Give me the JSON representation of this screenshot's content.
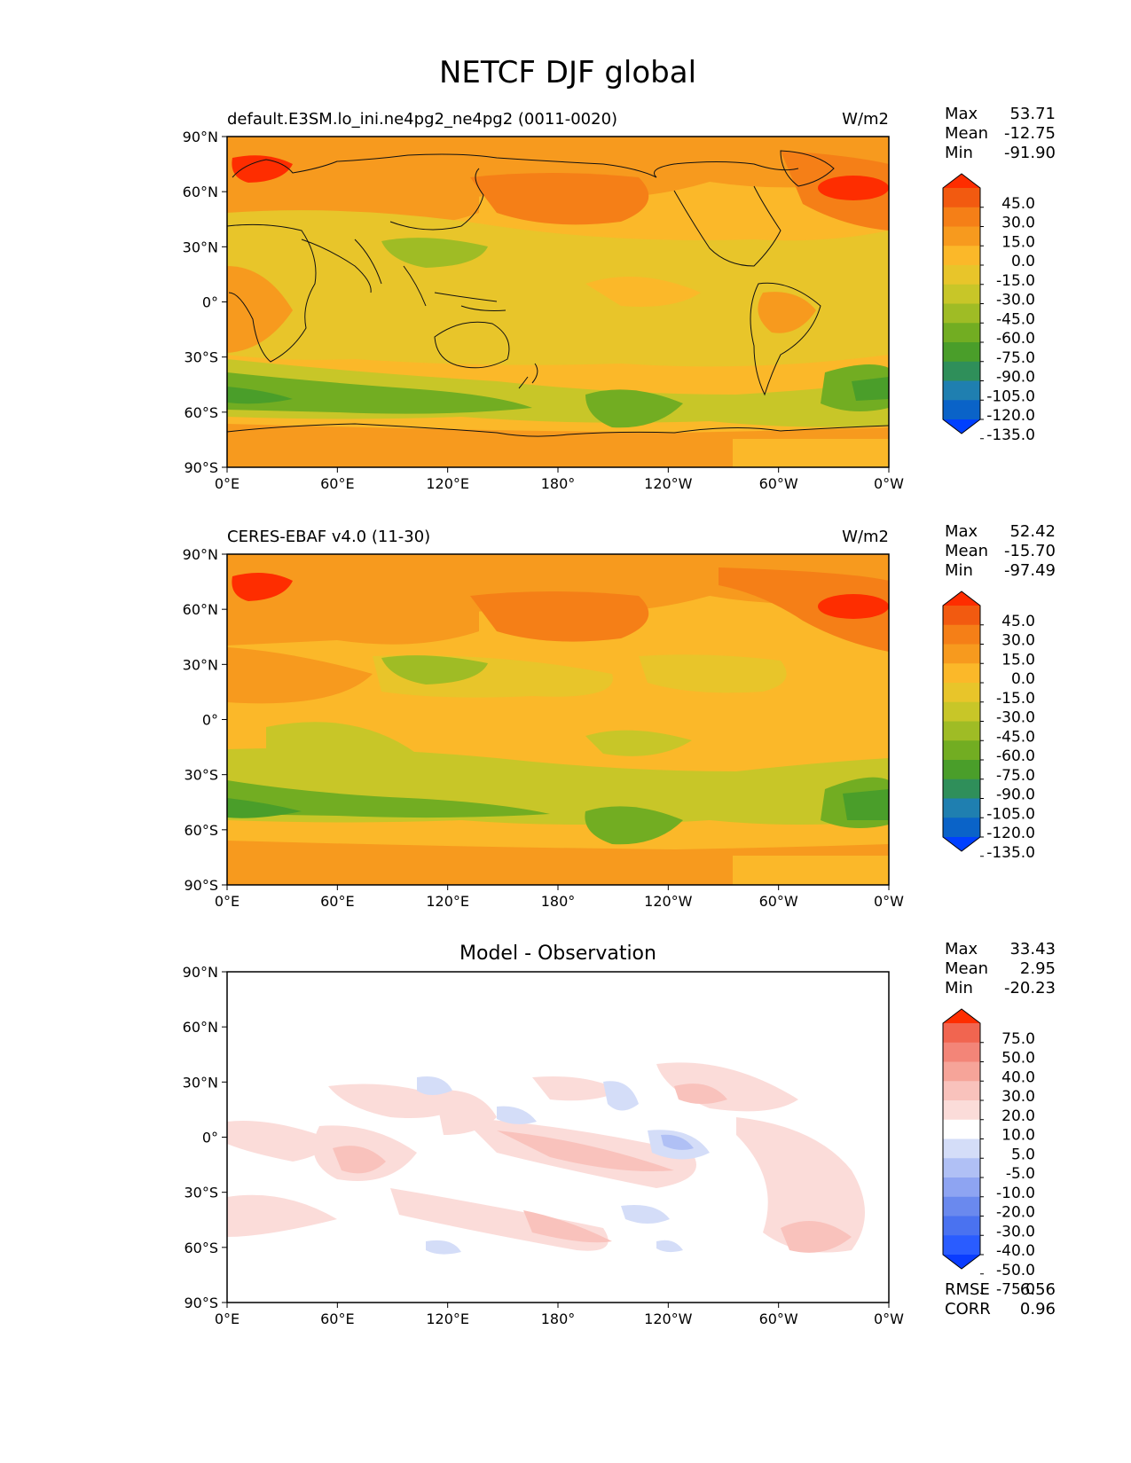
{
  "title": "NETCF DJF global",
  "colors": {
    "levels_abs": [
      "#0040ff",
      "#0a63c8",
      "#1f7fb0",
      "#2f8f5a",
      "#4a9e2a",
      "#72ad22",
      "#9fbc25",
      "#c8c628",
      "#e8c52a",
      "#fbb829",
      "#f79a1e",
      "#f57f17",
      "#f25a10",
      "#fe2d00"
    ],
    "levels_diff": [
      "#0a3cff",
      "#2a5cff",
      "#4a72f0",
      "#6a89ee",
      "#8ea4f2",
      "#b0c0f5",
      "#d4ddf8",
      "#ffffff",
      "#fbdcd9",
      "#f9c2bc",
      "#f6a499",
      "#f38578",
      "#f16550",
      "#fe2d00"
    ],
    "coast": "#111111"
  },
  "panels": [
    {
      "label": "default.E3SM.lo_ini.ne4pg2_ne4pg2 (0011-0020)",
      "units": "W/m2",
      "center_title": "",
      "stats": {
        "max_label": "Max",
        "max": "53.71",
        "mean_label": "Mean",
        "mean": "-12.75",
        "min_label": "Min",
        "min": "-91.90"
      },
      "colorbar_ticks": [
        "45.0",
        "30.0",
        "15.0",
        "0.0",
        "-15.0",
        "-30.0",
        "-45.0",
        "-60.0",
        "-75.0",
        "-90.0",
        "-105.0",
        "-120.0",
        "-135.0"
      ]
    },
    {
      "label": "CERES-EBAF v4.0 (11-30)",
      "units": "W/m2",
      "center_title": "",
      "stats": {
        "max_label": "Max",
        "max": "52.42",
        "mean_label": "Mean",
        "mean": "-15.70",
        "min_label": "Min",
        "min": "-97.49"
      },
      "colorbar_ticks": [
        "45.0",
        "30.0",
        "15.0",
        "0.0",
        "-15.0",
        "-30.0",
        "-45.0",
        "-60.0",
        "-75.0",
        "-90.0",
        "-105.0",
        "-120.0",
        "-135.0"
      ]
    },
    {
      "label": "",
      "units": "",
      "center_title": "Model - Observation",
      "stats": {
        "max_label": "Max",
        "max": "33.43",
        "mean_label": "Mean",
        "mean": "2.95",
        "min_label": "Min",
        "min": "-20.23"
      },
      "colorbar_ticks": [
        "75.0",
        "50.0",
        "40.0",
        "30.0",
        "20.0",
        "10.0",
        "5.0",
        "-5.0",
        "-10.0",
        "-20.0",
        "-30.0",
        "-40.0",
        "-50.0",
        "-75.0"
      ],
      "rmse_label": "RMSE",
      "rmse": "6.56",
      "corr_label": "CORR",
      "corr": "0.96"
    }
  ],
  "lat_ticks": [
    "90°N",
    "60°N",
    "30°N",
    "0°",
    "30°S",
    "60°S",
    "90°S"
  ],
  "lon_ticks": [
    "0°E",
    "60°E",
    "120°E",
    "180°",
    "120°W",
    "60°W",
    "0°W"
  ]
}
